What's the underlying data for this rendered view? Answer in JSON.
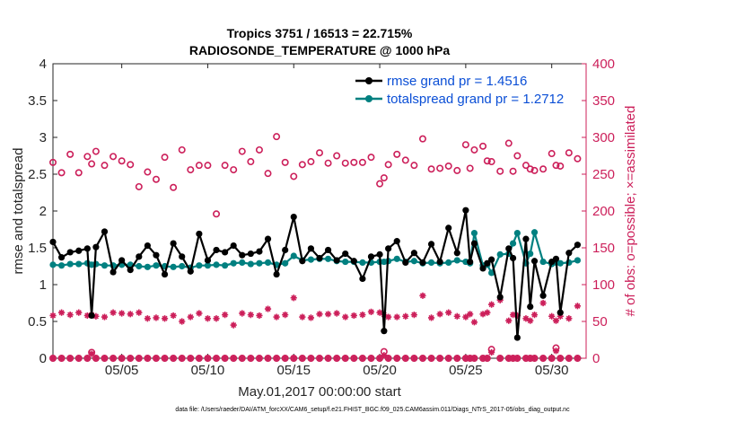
{
  "colors": {
    "rmse": "#000000",
    "spread": "#008080",
    "obs": "#cc1f5a",
    "legend_text": "#0b4fd6",
    "axis": "#262626"
  },
  "chart_data": {
    "type": "line",
    "title_line1": "Tropics 3751 / 16513 = 22.715%",
    "title_line2": "RADIOSONDE_TEMPERATURE @ 1000 hPa",
    "xlabel": "May.01,2017 00:00:00 start",
    "ylabel_left": "rmse and totalspread",
    "ylabel_right": "# of obs: o=possible; ×=assimilated",
    "footnote": "data file: /Users/raeder/DAI/ATM_forcXX/CAM6_setup/f.e21.FHIST_BGC.f09_025.CAM6assim.011/Diags_NTrS_2017-05/obs_diag_output.nc",
    "xlim": [
      1,
      32
    ],
    "ylim_left": [
      0,
      4
    ],
    "ylim_right": [
      0,
      400
    ],
    "x_ticks": [
      5,
      10,
      15,
      20,
      25,
      30
    ],
    "x_tick_labels": [
      "05/05",
      "05/10",
      "05/15",
      "05/20",
      "05/25",
      "05/30"
    ],
    "y_left_ticks": [
      "0",
      "0.5",
      "1",
      "1.5",
      "2",
      "2.5",
      "3",
      "3.5",
      "4"
    ],
    "y_right_ticks": [
      "0",
      "50",
      "100",
      "150",
      "200",
      "250",
      "300",
      "350",
      "400"
    ],
    "legend": {
      "rmse": "rmse grand pr = 1.4516",
      "spread": "totalspread grand pr = 1.2712"
    },
    "x": [
      1.0,
      1.5,
      2.0,
      2.5,
      3.0,
      3.25,
      3.5,
      4.0,
      4.5,
      5.0,
      5.5,
      6.0,
      6.5,
      7.0,
      7.5,
      8.0,
      8.5,
      9.0,
      9.5,
      10.0,
      10.5,
      11.0,
      11.5,
      12.0,
      12.5,
      13.0,
      13.5,
      14.0,
      14.5,
      15.0,
      15.5,
      16.0,
      16.5,
      17.0,
      17.5,
      18.0,
      18.5,
      19.0,
      19.5,
      20.0,
      20.25,
      20.5,
      21.0,
      21.5,
      22.0,
      22.5,
      23.0,
      23.5,
      24.0,
      24.5,
      25.0,
      25.25,
      25.5,
      26.0,
      26.25,
      26.5,
      27.0,
      27.5,
      27.75,
      28.0,
      28.5,
      28.75,
      29.0,
      29.5,
      30.0,
      30.25,
      30.5,
      31.0,
      31.5
    ],
    "series": [
      {
        "name": "rmse",
        "values": [
          1.58,
          1.37,
          1.44,
          1.46,
          1.49,
          0.58,
          1.51,
          1.72,
          1.17,
          1.33,
          1.2,
          1.38,
          1.53,
          1.4,
          1.14,
          1.56,
          1.38,
          1.18,
          1.69,
          1.33,
          1.47,
          1.44,
          1.53,
          1.4,
          1.42,
          1.45,
          1.62,
          1.14,
          1.47,
          1.92,
          1.32,
          1.49,
          1.36,
          1.47,
          1.33,
          1.42,
          1.32,
          1.08,
          1.38,
          1.41,
          0.37,
          1.49,
          1.59,
          1.3,
          1.43,
          1.3,
          1.55,
          1.31,
          1.77,
          1.43,
          2.01,
          1.31,
          1.56,
          1.22,
          1.29,
          1.34,
          0.83,
          1.49,
          1.36,
          0.28,
          1.62,
          0.7,
          1.32,
          0.85,
          1.31,
          1.35,
          0.62,
          1.43,
          1.54
        ]
      },
      {
        "name": "totalspread",
        "values": [
          1.27,
          1.26,
          1.28,
          1.28,
          1.29,
          1.27,
          1.28,
          1.26,
          1.26,
          1.27,
          1.27,
          1.25,
          1.24,
          1.26,
          1.25,
          1.24,
          1.25,
          1.23,
          1.26,
          1.26,
          1.27,
          1.26,
          1.29,
          1.3,
          1.28,
          1.29,
          1.3,
          1.27,
          1.29,
          1.39,
          1.33,
          1.34,
          1.35,
          1.35,
          1.32,
          1.31,
          1.31,
          1.3,
          1.3,
          1.31,
          1.31,
          1.32,
          1.35,
          1.31,
          1.32,
          1.29,
          1.3,
          1.29,
          1.3,
          1.33,
          1.31,
          1.29,
          1.7,
          1.26,
          1.27,
          1.16,
          1.41,
          1.42,
          1.56,
          1.7,
          1.29,
          1.42,
          1.71,
          1.31,
          1.28,
          1.3,
          1.29,
          1.3,
          1.33
        ]
      },
      {
        "name": "possible",
        "values": [
          266,
          252,
          277,
          252,
          274,
          264,
          281,
          262,
          274,
          268,
          263,
          233,
          253,
          243,
          273,
          232,
          283,
          256,
          262,
          262,
          196,
          262,
          256,
          281,
          267,
          283,
          251,
          301,
          266,
          247,
          263,
          267,
          279,
          265,
          275,
          265,
          266,
          266,
          273,
          237,
          245,
          263,
          277,
          269,
          262,
          298,
          257,
          258,
          261,
          255,
          290,
          258,
          283,
          288,
          268,
          267,
          254,
          292,
          254,
          275,
          262,
          257,
          255,
          257,
          278,
          262,
          261,
          279,
          271
        ]
      },
      {
        "name": "assimilated",
        "values": [
          58,
          62,
          59,
          62,
          58,
          59,
          57,
          56,
          62,
          61,
          60,
          62,
          54,
          55,
          54,
          58,
          50,
          56,
          61,
          54,
          54,
          59,
          45,
          61,
          59,
          58,
          67,
          56,
          59,
          82,
          56,
          55,
          60,
          60,
          61,
          56,
          58,
          59,
          63,
          62,
          59,
          56,
          56,
          57,
          59,
          85,
          55,
          60,
          62,
          57,
          56,
          60,
          49,
          60,
          62,
          73,
          79,
          51,
          59,
          58,
          54,
          51,
          59,
          75,
          57,
          51,
          57,
          54,
          71
        ]
      },
      {
        "name": "possible_low",
        "values": [
          0,
          0,
          0,
          0,
          0,
          8,
          0,
          0,
          0,
          0,
          0,
          0,
          0,
          0,
          0,
          0,
          0,
          0,
          0,
          0,
          0,
          0,
          0,
          0,
          0,
          0,
          0,
          0,
          0,
          0,
          0,
          0,
          0,
          0,
          0,
          0,
          0,
          0,
          0,
          0,
          9,
          0,
          0,
          0,
          0,
          0,
          0,
          0,
          0,
          0,
          0,
          0,
          0,
          0,
          0,
          12,
          0,
          0,
          0,
          0,
          0,
          0,
          0,
          0,
          0,
          14,
          0,
          0,
          0
        ]
      },
      {
        "name": "assimilated_low",
        "values": [
          0,
          0,
          0,
          0,
          0,
          6,
          0,
          0,
          0,
          0,
          0,
          0,
          0,
          0,
          0,
          0,
          0,
          0,
          0,
          0,
          0,
          0,
          0,
          0,
          0,
          0,
          0,
          0,
          0,
          0,
          0,
          0,
          0,
          0,
          0,
          0,
          0,
          0,
          0,
          0,
          4,
          0,
          0,
          0,
          0,
          0,
          0,
          0,
          0,
          0,
          0,
          0,
          0,
          0,
          0,
          8,
          0,
          0,
          0,
          0,
          0,
          0,
          0,
          0,
          0,
          10,
          0,
          0,
          0
        ]
      }
    ]
  }
}
